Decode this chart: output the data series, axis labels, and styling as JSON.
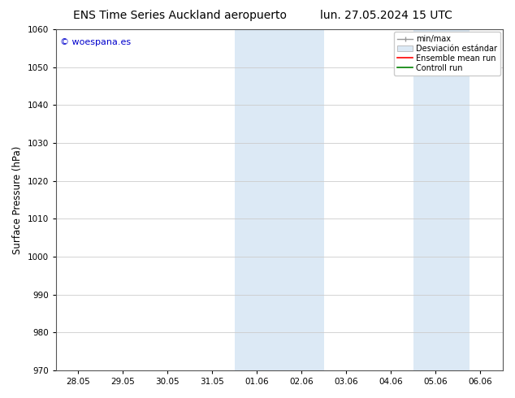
{
  "title_left": "ENS Time Series Auckland aeropuerto",
  "title_right": "lun. 27.05.2024 15 UTC",
  "ylabel": "Surface Pressure (hPa)",
  "ylim": [
    970,
    1060
  ],
  "yticks": [
    970,
    980,
    990,
    1000,
    1010,
    1020,
    1030,
    1040,
    1050,
    1060
  ],
  "xtick_labels": [
    "28.05",
    "29.05",
    "30.05",
    "31.05",
    "01.06",
    "02.06",
    "03.06",
    "04.06",
    "05.06",
    "06.06"
  ],
  "xtick_positions": [
    0,
    1,
    2,
    3,
    4,
    5,
    6,
    7,
    8,
    9
  ],
  "shaded_regions": [
    {
      "xstart": 3.5,
      "xend": 5.5,
      "color": "#dce9f5"
    },
    {
      "xstart": 7.5,
      "xend": 8.75,
      "color": "#dce9f5"
    }
  ],
  "watermark_text": "© woespana.es",
  "watermark_color": "#0000cc",
  "bg_color": "#ffffff",
  "grid_color": "#cccccc",
  "title_fontsize": 10,
  "tick_fontsize": 7.5,
  "ylabel_fontsize": 8.5
}
